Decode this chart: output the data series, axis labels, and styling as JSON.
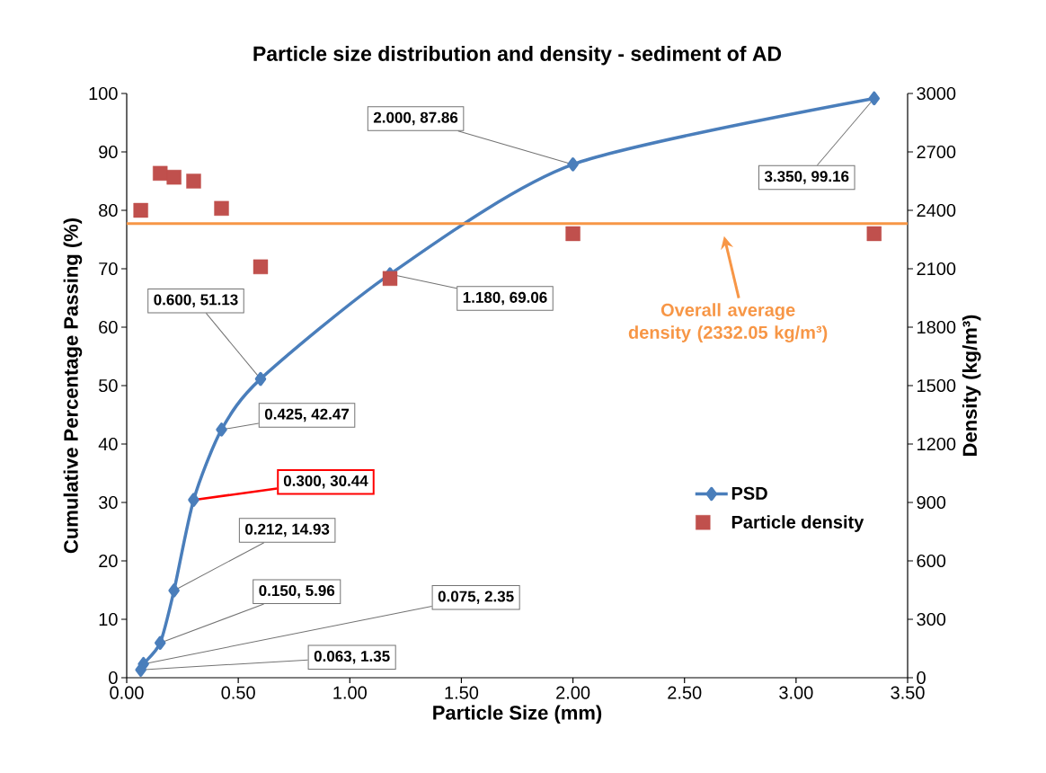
{
  "chart_data": {
    "type": "line",
    "title": "Particle size distribution and density - sediment of AD",
    "xlabel": "Particle Size (mm)",
    "ylabel": "Cumulative Percentage Passing (%)",
    "y2label": "Density (kg/m³)",
    "series": [
      {
        "name": "PSD",
        "color": "#4a7ebb",
        "marker": "diamond",
        "line_style": "solid",
        "x": [
          0.063,
          0.075,
          0.15,
          0.212,
          0.3,
          0.425,
          0.6,
          1.18,
          2.0,
          3.35
        ],
        "values": [
          1.35,
          2.35,
          5.96,
          14.93,
          30.44,
          42.47,
          51.13,
          69.06,
          87.86,
          99.16
        ],
        "value_labels": [
          "0.063, 1.35",
          "0.075, 2.35",
          "0.150, 5.96",
          "0.212, 14.93",
          null,
          "0.425, 42.47",
          "0.600, 51.13",
          "1.180, 69.06",
          "2.000, 87.86",
          "3.350, 99.16"
        ]
      },
      {
        "name": "Particle density",
        "type": "scatter",
        "color": "#c0504d",
        "marker": "square",
        "axis": "y2",
        "x": [
          0.063,
          0.15,
          0.212,
          0.3,
          0.425,
          0.6,
          1.18,
          2.0,
          3.35
        ],
        "values": [
          2400,
          2590,
          2570,
          2550,
          2410,
          2110,
          2050,
          2280,
          2280
        ]
      }
    ],
    "annotations": [
      {
        "text": "0.300, 30.44",
        "x": 0.3,
        "y": 30.44
      }
    ],
    "ref_lines": [
      {
        "axis": "y2",
        "value": 2332.05,
        "label": "Overall average density (2332.05 kg/m³)",
        "color": "#f79646"
      }
    ],
    "xlim": [
      0,
      3.5
    ],
    "ylim": [
      0,
      100
    ],
    "y2lim": [
      0,
      3000
    ],
    "xticks": [
      {
        "value": 0,
        "label": "0.00"
      },
      {
        "value": 0.5,
        "label": "0.50"
      },
      {
        "value": 1,
        "label": "1.00"
      },
      {
        "value": 1.5,
        "label": "1.50"
      },
      {
        "value": 2,
        "label": "2.00"
      },
      {
        "value": 2.5,
        "label": "2.50"
      },
      {
        "value": 3,
        "label": "3.00"
      },
      {
        "value": 3.5,
        "label": "3.50"
      }
    ],
    "yticks": [
      0,
      10,
      20,
      30,
      40,
      50,
      60,
      70,
      80,
      90,
      100
    ],
    "y2ticks": [
      0,
      300,
      600,
      900,
      1200,
      1500,
      1800,
      2100,
      2400,
      2700,
      3000
    ],
    "legend": "right",
    "grid": false
  }
}
